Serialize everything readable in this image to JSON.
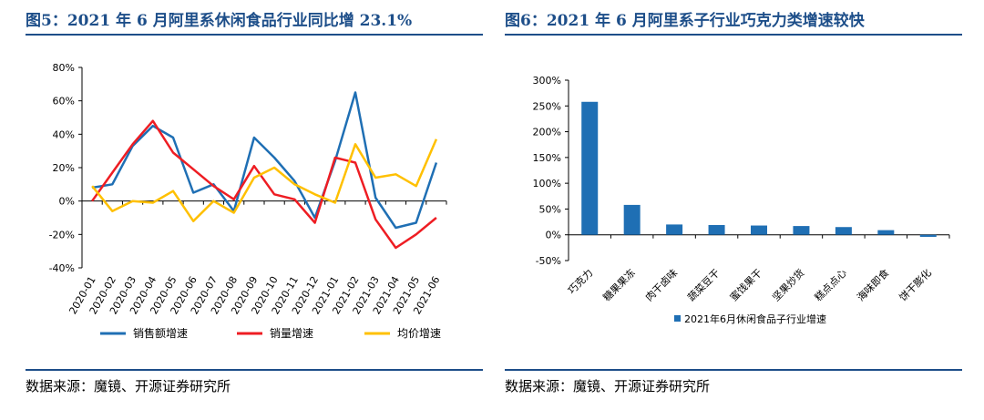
{
  "left": {
    "title": "图5：2021 年 6 月阿里系休闲食品行业同比增 23.1%",
    "source": "数据来源：魔镜、开源证券研究所",
    "chart_data": {
      "type": "line",
      "categories": [
        "2020-01",
        "2020-02",
        "2020-03",
        "2020-04",
        "2020-05",
        "2020-06",
        "2020-07",
        "2020-08",
        "2020-09",
        "2020-10",
        "2020-11",
        "2020-12",
        "2021-01",
        "2021-02",
        "2021-03",
        "2021-04",
        "2021-05",
        "2021-06"
      ],
      "y_tick_labels": [
        "80%",
        "60%",
        "40%",
        "20%",
        "0%",
        "-20%",
        "-40%"
      ],
      "ylim": [
        -40,
        80
      ],
      "series": [
        {
          "name": "销售额增速",
          "color": "#1f6fb4",
          "values": [
            8,
            10,
            33,
            45,
            38,
            5,
            10,
            -6,
            38,
            26,
            12,
            -10,
            24,
            65,
            2,
            -16,
            -13,
            23
          ]
        },
        {
          "name": "销量增速",
          "color": "#ee1d23",
          "values": [
            0,
            17,
            34,
            48,
            29,
            19,
            9,
            1,
            21,
            4,
            1,
            -13,
            26,
            23,
            -11,
            -28,
            -20,
            -10
          ]
        },
        {
          "name": "均价增速",
          "color": "#ffc000",
          "values": [
            9,
            -6,
            0,
            -1,
            6,
            -12,
            0,
            -7,
            14,
            20,
            10,
            4,
            -1,
            34,
            14,
            16,
            9,
            37
          ]
        }
      ]
    }
  },
  "right": {
    "title": "图6：2021 年 6 月阿里系子行业巧克力类增速较快",
    "source": "数据来源：魔镜、开源证券研究所",
    "chart_data": {
      "type": "bar",
      "categories": [
        "巧克力",
        "糖果果冻",
        "肉干卤味",
        "蔬菜豆干",
        "蜜饯果干",
        "坚果炒货",
        "糕点点心",
        "海味即食",
        "饼干膨化"
      ],
      "values": [
        258,
        58,
        20,
        19,
        18,
        17,
        15,
        9,
        -4
      ],
      "y_tick_labels": [
        "300%",
        "250%",
        "200%",
        "150%",
        "100%",
        "50%",
        "0%",
        "-50%"
      ],
      "ylim": [
        -50,
        300
      ],
      "legend": "2021年6月休闲食品子行业增速",
      "color": "#1f6fb4"
    }
  }
}
